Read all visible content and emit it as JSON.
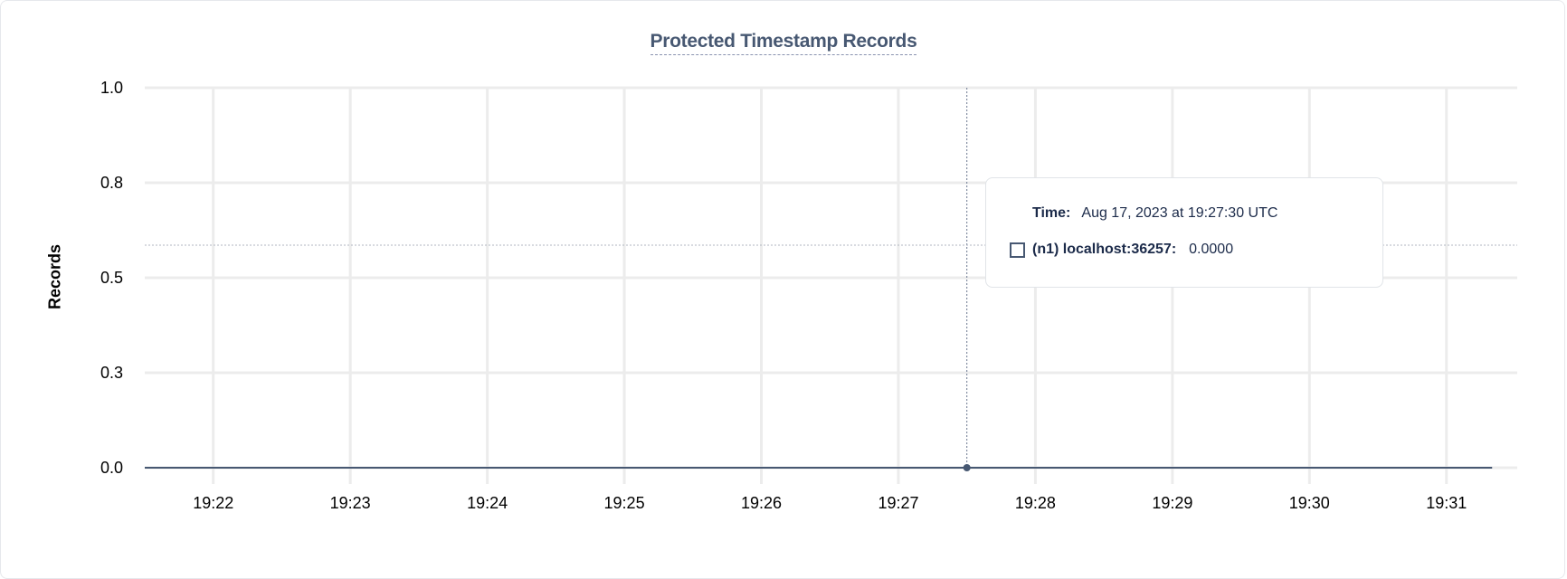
{
  "chart_data": {
    "type": "line",
    "title": "Protected Timestamp Records",
    "ylabel": "Records",
    "xlabel": "",
    "ylim": [
      0,
      1
    ],
    "xlim": [
      "19:21:30",
      "19:31:31"
    ],
    "y_ticks": [
      "1.0",
      "0.8",
      "0.5",
      "0.3",
      "0.0"
    ],
    "y_tick_values": [
      1.0,
      0.75,
      0.5,
      0.25,
      0.0
    ],
    "x_ticks": [
      "19:22",
      "19:23",
      "19:24",
      "19:25",
      "19:26",
      "19:27",
      "19:28",
      "19:29",
      "19:30",
      "19:31"
    ],
    "grid": true,
    "series": [
      {
        "name": "(n1) localhost:36257",
        "color": "#475872",
        "x": [
          "19:21:30",
          "19:21:40",
          "19:21:50",
          "19:22:00",
          "19:22:10",
          "19:22:20",
          "19:22:30",
          "19:22:40",
          "19:22:50",
          "19:23:00",
          "19:23:10",
          "19:23:20",
          "19:23:30",
          "19:23:40",
          "19:23:50",
          "19:24:00",
          "19:24:10",
          "19:24:20",
          "19:24:30",
          "19:24:40",
          "19:24:50",
          "19:25:00",
          "19:25:10",
          "19:25:20",
          "19:25:30",
          "19:25:40",
          "19:25:50",
          "19:26:00",
          "19:26:10",
          "19:26:20",
          "19:26:30",
          "19:26:40",
          "19:26:50",
          "19:27:00",
          "19:27:10",
          "19:27:20",
          "19:27:30",
          "19:27:40",
          "19:27:50",
          "19:28:00",
          "19:28:10",
          "19:28:20",
          "19:28:30",
          "19:28:40",
          "19:28:50",
          "19:29:00",
          "19:29:10",
          "19:29:20",
          "19:29:30",
          "19:29:40",
          "19:29:50",
          "19:30:00",
          "19:30:10",
          "19:30:20",
          "19:30:30",
          "19:30:40",
          "19:30:50",
          "19:31:00",
          "19:31:10",
          "19:31:20"
        ],
        "y": [
          0,
          0,
          0,
          0,
          0,
          0,
          0,
          0,
          0,
          0,
          0,
          0,
          0,
          0,
          0,
          0,
          0,
          0,
          0,
          0,
          0,
          0,
          0,
          0,
          0,
          0,
          0,
          0,
          0,
          0,
          0,
          0,
          0,
          0,
          0,
          0,
          0,
          0,
          0,
          0,
          0,
          0,
          0,
          0,
          0,
          0,
          0,
          0,
          0,
          0,
          0,
          0,
          0,
          0,
          0,
          0,
          0,
          0,
          0,
          0
        ]
      }
    ],
    "hover": {
      "x": "19:27:30",
      "time_label": "Time:",
      "time_value": "Aug 17, 2023 at 19:27:30 UTC",
      "series_label": "(n1) localhost:36257:",
      "series_value": "0.0000"
    }
  }
}
